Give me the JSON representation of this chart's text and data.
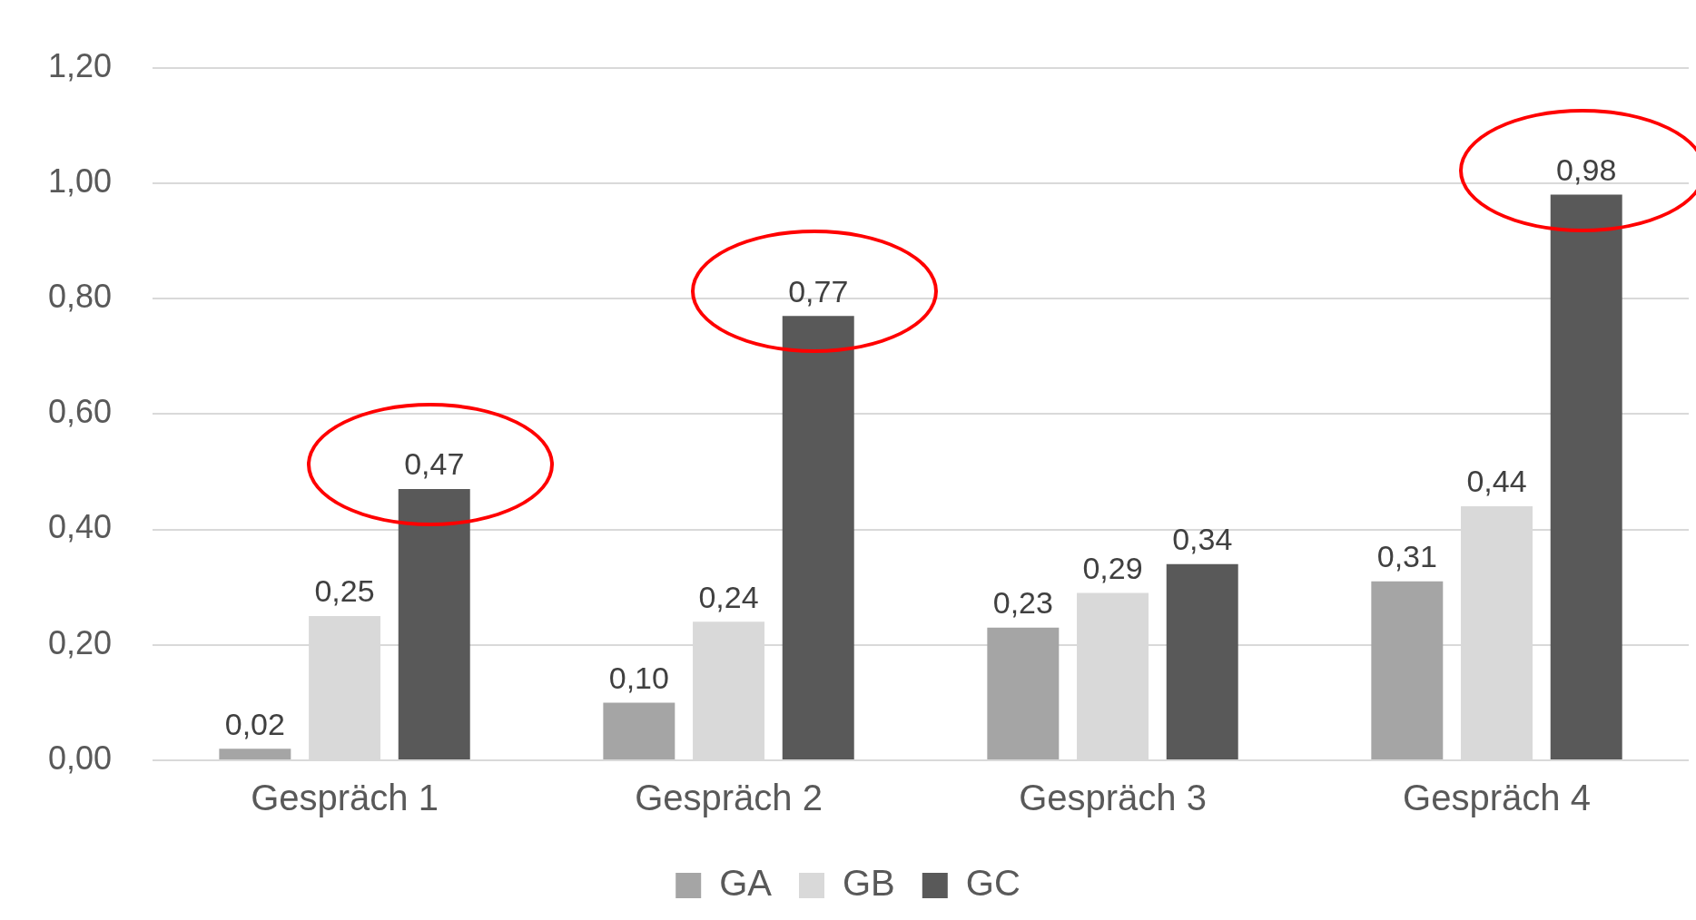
{
  "chart_data": {
    "type": "bar",
    "categories": [
      "Gespräch 1",
      "Gespräch 2",
      "Gespräch 3",
      "Gespräch 4"
    ],
    "series": [
      {
        "name": "GA",
        "color": "#a5a5a5",
        "values": [
          0.02,
          0.1,
          0.23,
          0.31
        ],
        "value_labels": [
          "0,02",
          "0,10",
          "0,23",
          "0,31"
        ]
      },
      {
        "name": "GB",
        "color": "#d9d9d9",
        "values": [
          0.25,
          0.24,
          0.29,
          0.44
        ],
        "value_labels": [
          "0,25",
          "0,24",
          "0,29",
          "0,44"
        ]
      },
      {
        "name": "GC",
        "color": "#595959",
        "values": [
          0.47,
          0.77,
          0.34,
          0.98
        ],
        "value_labels": [
          "0,47",
          "0,77",
          "0,34",
          "0,98"
        ]
      }
    ],
    "ylim": [
      0,
      1.2
    ],
    "yticks": [
      {
        "value": 0,
        "label": "0,00"
      },
      {
        "value": 0.2,
        "label": "0,20"
      },
      {
        "value": 0.4,
        "label": "0,40"
      },
      {
        "value": 0.6,
        "label": "0,60"
      },
      {
        "value": 0.8,
        "label": "0,80"
      },
      {
        "value": 1,
        "label": "1,00"
      },
      {
        "value": 1.2,
        "label": "1,20"
      }
    ],
    "grid": "y",
    "legend": "bottom"
  }
}
